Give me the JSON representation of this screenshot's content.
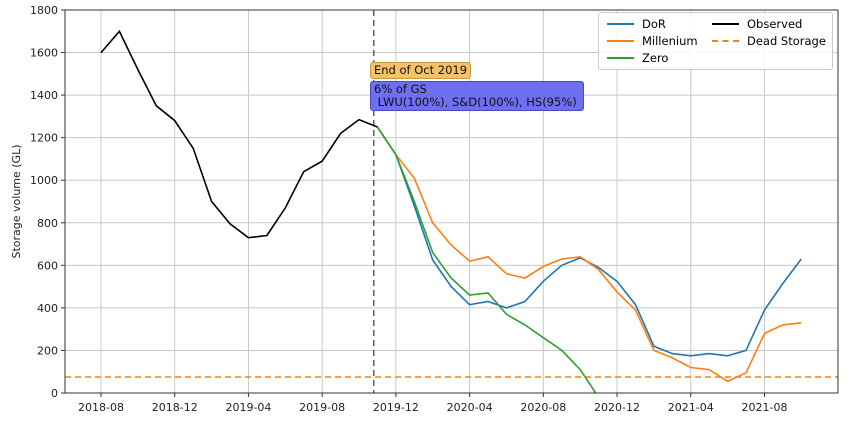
{
  "chart_data": {
    "type": "line",
    "ylabel": "Storage volume (GL)",
    "ylim": [
      0,
      1800
    ],
    "yticks": [
      0,
      200,
      400,
      600,
      800,
      1000,
      1200,
      1400,
      1600,
      1800
    ],
    "xticks": [
      "2018-08",
      "2018-12",
      "2019-04",
      "2019-08",
      "2019-12",
      "2020-04",
      "2020-08",
      "2020-12",
      "2021-04",
      "2021-08"
    ],
    "xlim_months": [
      -1.9,
      40.2
    ],
    "grid": true,
    "legend_position": "top-right",
    "series": [
      {
        "name": "DoR",
        "color": "#1f77b4",
        "start_month": 15,
        "values": [
          1250,
          1120,
          880,
          625,
          500,
          415,
          430,
          400,
          430,
          525,
          600,
          635,
          590,
          525,
          415,
          220,
          185,
          175,
          185,
          175,
          200,
          390,
          515,
          630
        ]
      },
      {
        "name": "Millenium",
        "color": "#ff7f0e",
        "start_month": 15,
        "values": [
          1250,
          1120,
          1010,
          800,
          695,
          620,
          640,
          560,
          540,
          595,
          630,
          640,
          580,
          475,
          390,
          200,
          165,
          120,
          110,
          55,
          95,
          280,
          320,
          330
        ]
      },
      {
        "name": "Zero",
        "color": "#2ca02c",
        "start_month": 15,
        "values": [
          1250,
          1120,
          900,
          660,
          540,
          460,
          470,
          370,
          320,
          260,
          200,
          110,
          -20
        ]
      },
      {
        "name": "Observed",
        "color": "#000000",
        "start_month": 0,
        "values": [
          1600,
          1700,
          1520,
          1350,
          1280,
          1150,
          900,
          795,
          730,
          740,
          870,
          1040,
          1090,
          1220,
          1285,
          1250
        ]
      },
      {
        "name": "Dead Storage",
        "color": "#ff7f0e",
        "dashed": true,
        "constant": 75
      }
    ],
    "vline": {
      "month": 14.8,
      "color": "#666666"
    },
    "annotations": [
      {
        "text": "End of Oct 2019",
        "bg": "#f5c26b"
      },
      {
        "line1": "6% of GS",
        "line2": " LWU(100%), S&D(100%), HS(95%)",
        "bg": "#6f6ff2"
      }
    ]
  }
}
